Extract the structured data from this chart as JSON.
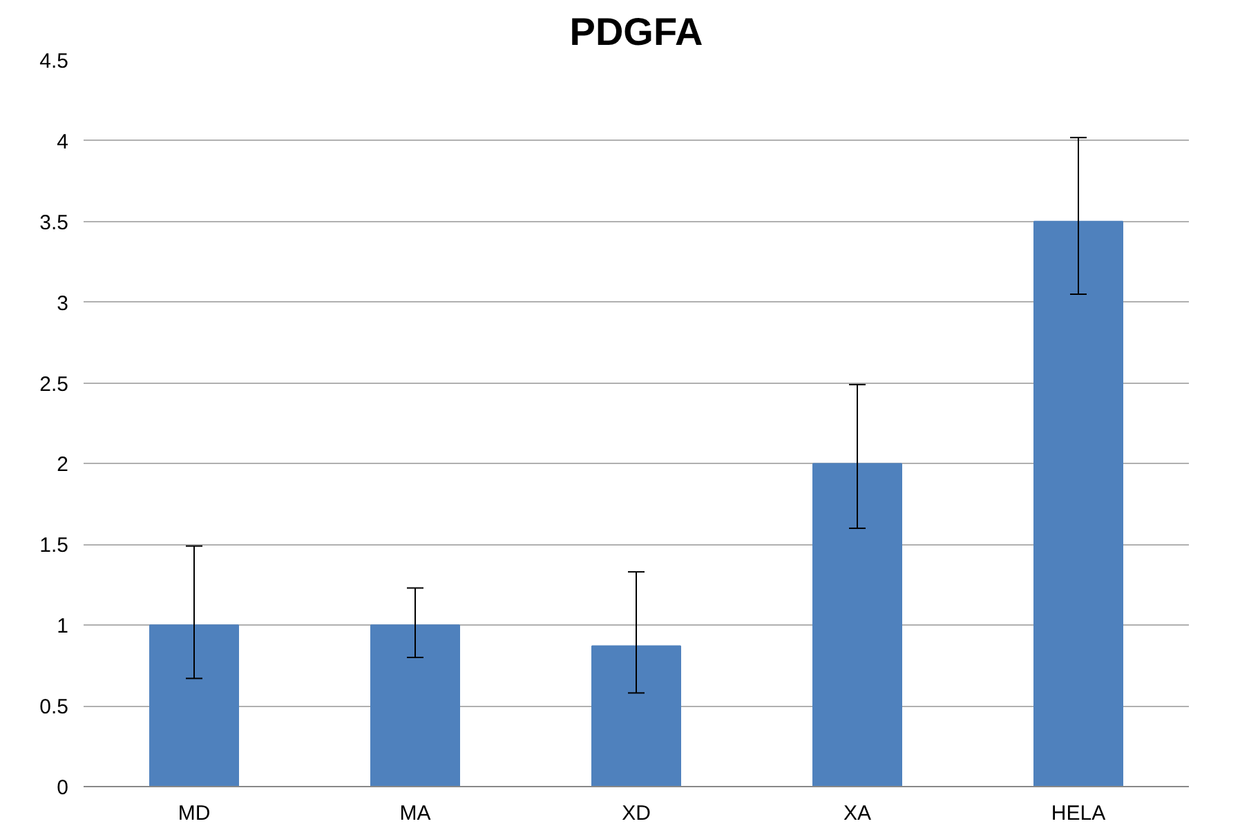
{
  "chart_data": {
    "type": "bar",
    "title": "PDGFA",
    "categories": [
      "MD",
      "MA",
      "XD",
      "XA",
      "HELA"
    ],
    "values": [
      1.0,
      1.0,
      0.87,
      2.0,
      3.5
    ],
    "errors": [
      [
        0.67,
        1.49
      ],
      [
        0.8,
        1.23
      ],
      [
        0.58,
        1.33
      ],
      [
        1.6,
        2.49
      ],
      [
        3.05,
        4.02
      ]
    ],
    "color": "#4f81bd",
    "ylim": [
      0,
      4.5
    ],
    "yticks": [
      0,
      0.5,
      1,
      1.5,
      2,
      2.5,
      3,
      3.5,
      4,
      4.5
    ],
    "grid": "y"
  }
}
